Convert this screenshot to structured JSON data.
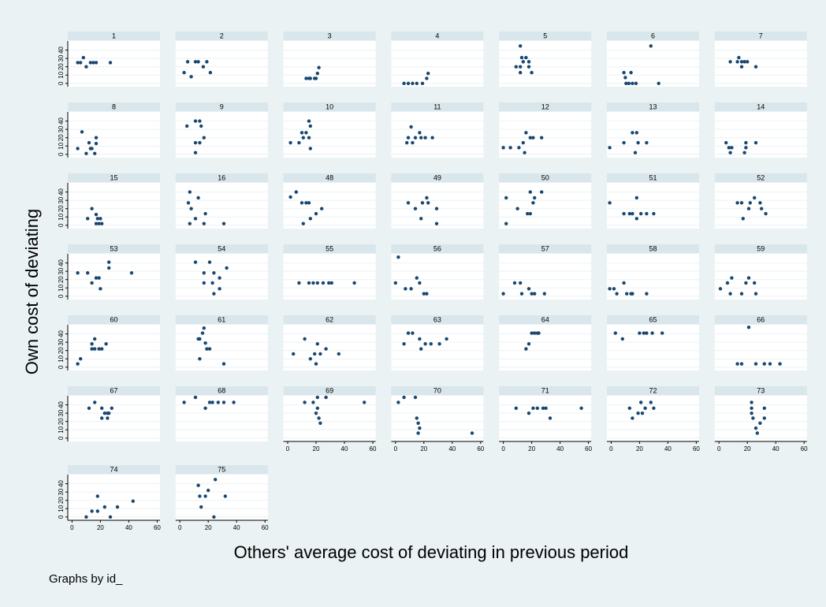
{
  "chart_data": {
    "type": "scatter",
    "y_label": "Own cost of deviating",
    "x_label": "Others' average cost of deviating in previous period",
    "note": "Graphs by id_",
    "color": "#1a476f",
    "xlim": [
      -3,
      62
    ],
    "ylim": [
      -4,
      51
    ],
    "xticks": [
      0,
      20,
      40,
      60
    ],
    "yticks": [
      0,
      10,
      20,
      30,
      40
    ],
    "panels": [
      {
        "title": "1",
        "x": [
          4,
          6,
          8,
          10,
          13,
          15,
          17,
          27
        ],
        "y": [
          25,
          25,
          31,
          20,
          25,
          25,
          25,
          25
        ]
      },
      {
        "title": "2",
        "x": [
          3,
          5.5,
          8,
          11,
          13,
          16.5,
          19,
          21.5
        ],
        "y": [
          13,
          26,
          8,
          26,
          26,
          20,
          26,
          13
        ]
      },
      {
        "title": "3",
        "x": [
          13,
          15,
          16,
          19,
          20,
          21,
          22
        ],
        "y": [
          6,
          6,
          6,
          6,
          6,
          12,
          19
        ]
      },
      {
        "title": "4",
        "x": [
          6,
          9,
          12,
          15,
          19,
          22,
          23
        ],
        "y": [
          0,
          0,
          0,
          0,
          0,
          6,
          12
        ]
      },
      {
        "title": "5",
        "x": [
          12,
          13,
          16,
          14,
          18,
          9,
          12,
          18,
          12,
          20
        ],
        "y": [
          45,
          31,
          31,
          26,
          26,
          20,
          20,
          20,
          13,
          13
        ]
      },
      {
        "title": "6",
        "x": [
          9,
          10,
          14,
          10.5,
          12.5,
          15,
          17.5,
          33.5,
          28
        ],
        "y": [
          13,
          7,
          13,
          0,
          0,
          0,
          0,
          0,
          45
        ]
      },
      {
        "title": "7",
        "x": [
          8,
          14,
          13,
          16,
          18,
          20,
          16,
          26
        ],
        "y": [
          26,
          31,
          26,
          26,
          26,
          26,
          20,
          20
        ]
      },
      {
        "title": "8",
        "x": [
          7,
          4,
          10,
          12,
          14,
          17,
          17,
          16,
          13
        ],
        "y": [
          27,
          7,
          1,
          14,
          7,
          20,
          13,
          1,
          7
        ]
      },
      {
        "title": "9",
        "x": [
          5,
          11,
          14,
          15,
          17,
          11,
          14,
          11
        ],
        "y": [
          34,
          40,
          40,
          34,
          20,
          14,
          14,
          2
        ]
      },
      {
        "title": "10",
        "x": [
          2,
          8,
          10,
          11,
          13,
          15,
          16,
          15,
          16
        ],
        "y": [
          14,
          14,
          26,
          20,
          26,
          40,
          34,
          20,
          7
        ]
      },
      {
        "title": "11",
        "x": [
          9,
          11,
          14,
          17,
          18,
          21,
          26,
          8,
          12
        ],
        "y": [
          20,
          33,
          20,
          26,
          20,
          20,
          20,
          14,
          14
        ]
      },
      {
        "title": "12",
        "x": [
          0,
          5,
          11,
          14,
          15,
          16,
          19,
          21,
          27
        ],
        "y": [
          8,
          8,
          8,
          14,
          2,
          26,
          20,
          20,
          20
        ]
      },
      {
        "title": "13",
        "x": [
          -1,
          9,
          15,
          18,
          19,
          17,
          25
        ],
        "y": [
          8,
          14,
          26,
          26,
          14,
          2,
          14
        ]
      },
      {
        "title": "14",
        "x": [
          5,
          7,
          9,
          8,
          18,
          19,
          19,
          26
        ],
        "y": [
          14,
          8,
          8,
          2,
          2,
          8,
          14,
          14
        ]
      },
      {
        "title": "15",
        "x": [
          14,
          11,
          17,
          18,
          17,
          19,
          20,
          21
        ],
        "y": [
          20,
          8,
          13,
          8,
          2,
          2,
          8,
          2
        ]
      },
      {
        "title": "16",
        "x": [
          7,
          6,
          13,
          8,
          11,
          18,
          7,
          17,
          31
        ],
        "y": [
          40,
          27,
          33,
          20,
          8,
          14,
          2,
          2,
          2
        ]
      },
      {
        "title": "48",
        "x": [
          2,
          6,
          10,
          13,
          15,
          24,
          20,
          16,
          11
        ],
        "y": [
          34,
          40,
          27,
          27,
          27,
          20,
          14,
          8,
          2
        ]
      },
      {
        "title": "49",
        "x": [
          9,
          14,
          22,
          23,
          19,
          18,
          29,
          29
        ],
        "y": [
          27,
          20,
          33,
          27,
          27,
          8,
          20,
          2
        ]
      },
      {
        "title": "50",
        "x": [
          2,
          2,
          10,
          17,
          19,
          19,
          21,
          22,
          27
        ],
        "y": [
          33,
          2,
          20,
          14,
          14,
          40,
          27,
          33,
          40
        ]
      },
      {
        "title": "51",
        "x": [
          -1,
          9,
          13,
          15,
          18,
          18,
          21,
          25,
          30
        ],
        "y": [
          27,
          14,
          14,
          14,
          33,
          8,
          14,
          14,
          14
        ]
      },
      {
        "title": "52",
        "x": [
          13,
          16,
          17,
          21,
          22,
          25,
          29,
          30,
          33
        ],
        "y": [
          27,
          27,
          8,
          20,
          27,
          33,
          27,
          20,
          14
        ]
      },
      {
        "title": "53",
        "x": [
          4,
          11,
          14,
          17,
          19,
          20,
          26,
          26,
          42
        ],
        "y": [
          28,
          28,
          16,
          22,
          22,
          9,
          34,
          41,
          28
        ]
      },
      {
        "title": "54",
        "x": [
          11,
          17,
          21,
          17,
          23,
          24,
          28,
          24,
          28,
          33
        ],
        "y": [
          41,
          28,
          41,
          16,
          16,
          28,
          22,
          3,
          9,
          34
        ]
      },
      {
        "title": "55",
        "x": [
          8,
          15,
          18,
          21,
          25,
          29,
          31,
          47
        ],
        "y": [
          16,
          16,
          16,
          16,
          16,
          16,
          16,
          16
        ]
      },
      {
        "title": "56",
        "x": [
          0,
          2,
          7,
          11,
          15,
          17,
          20,
          22
        ],
        "y": [
          16,
          47,
          9,
          9,
          22,
          16,
          3,
          3
        ]
      },
      {
        "title": "57",
        "x": [
          0,
          8,
          12,
          13,
          18,
          20,
          22,
          29
        ],
        "y": [
          3,
          16,
          16,
          3,
          9,
          3,
          3,
          3
        ]
      },
      {
        "title": "58",
        "x": [
          -1,
          2,
          4,
          9,
          11,
          14,
          15,
          25
        ],
        "y": [
          9,
          9,
          3,
          16,
          3,
          3,
          3,
          3
        ]
      },
      {
        "title": "59",
        "x": [
          1,
          6,
          9,
          8,
          16,
          19,
          21,
          25,
          26
        ],
        "y": [
          9,
          16,
          22,
          3,
          3,
          16,
          22,
          16,
          3
        ]
      },
      {
        "title": "60",
        "x": [
          4,
          6,
          14,
          14,
          16,
          16,
          19,
          21,
          24
        ],
        "y": [
          4,
          10,
          22,
          28,
          34,
          22,
          22,
          22,
          28
        ]
      },
      {
        "title": "61",
        "x": [
          13,
          14,
          16,
          17,
          18,
          19,
          21,
          14,
          31
        ],
        "y": [
          34,
          34,
          41,
          47,
          29,
          22,
          22,
          10,
          4
        ]
      },
      {
        "title": "62",
        "x": [
          4,
          12,
          16,
          19,
          21,
          23,
          20,
          27,
          36
        ],
        "y": [
          16,
          34,
          10,
          16,
          28,
          16,
          4,
          22,
          16
        ]
      },
      {
        "title": "63",
        "x": [
          6,
          9,
          12,
          17,
          18,
          21,
          25,
          31,
          36
        ],
        "y": [
          28,
          41,
          41,
          34,
          22,
          28,
          28,
          28,
          34
        ]
      },
      {
        "title": "64",
        "x": [
          16,
          18,
          20,
          22,
          24,
          25
        ],
        "y": [
          22,
          28,
          41,
          41,
          41,
          41
        ]
      },
      {
        "title": "65",
        "x": [
          3,
          8,
          20,
          23,
          25,
          29,
          36
        ],
        "y": [
          41,
          34,
          41,
          41,
          41,
          41,
          41
        ]
      },
      {
        "title": "66",
        "x": [
          13,
          16,
          21,
          26,
          32,
          36,
          43
        ],
        "y": [
          4,
          4,
          48,
          4,
          4,
          4,
          4
        ]
      },
      {
        "title": "67",
        "x": [
          12,
          16,
          21,
          23,
          25,
          26,
          28,
          25,
          21
        ],
        "y": [
          36,
          43,
          36,
          30,
          30,
          30,
          36,
          24,
          24
        ]
      },
      {
        "title": "68",
        "x": [
          3,
          11,
          18,
          21,
          23,
          27,
          31,
          38
        ],
        "y": [
          43,
          49,
          36,
          43,
          43,
          43,
          43,
          43
        ]
      },
      {
        "title": "69",
        "x": [
          12,
          18,
          21,
          27,
          21,
          20,
          22,
          23,
          54
        ],
        "y": [
          43,
          43,
          49,
          49,
          36,
          30,
          24,
          18,
          43
        ]
      },
      {
        "title": "70",
        "x": [
          2,
          6,
          14,
          15,
          16,
          17,
          16,
          54
        ],
        "y": [
          43,
          49,
          49,
          24,
          18,
          12,
          6,
          6
        ]
      },
      {
        "title": "71",
        "x": [
          9,
          18,
          21,
          24,
          28,
          30,
          33,
          55
        ],
        "y": [
          36,
          30,
          36,
          36,
          36,
          36,
          24,
          36
        ]
      },
      {
        "title": "72",
        "x": [
          13,
          15,
          19,
          21,
          22,
          24,
          28,
          30
        ],
        "y": [
          36,
          24,
          30,
          43,
          30,
          36,
          43,
          36
        ]
      },
      {
        "title": "73",
        "x": [
          23,
          23,
          23,
          24,
          27,
          26,
          29,
          32,
          32
        ],
        "y": [
          43,
          36,
          30,
          24,
          6,
          12,
          18,
          36,
          24
        ]
      },
      {
        "title": "74",
        "x": [
          10,
          14,
          18,
          18,
          23,
          27,
          32,
          43
        ],
        "y": [
          0,
          7,
          7,
          25,
          12,
          0,
          12,
          19
        ]
      },
      {
        "title": "75",
        "x": [
          13,
          14,
          15,
          18,
          20,
          25,
          24,
          32
        ],
        "y": [
          38,
          25,
          12,
          25,
          32,
          45,
          0,
          25
        ]
      }
    ]
  }
}
